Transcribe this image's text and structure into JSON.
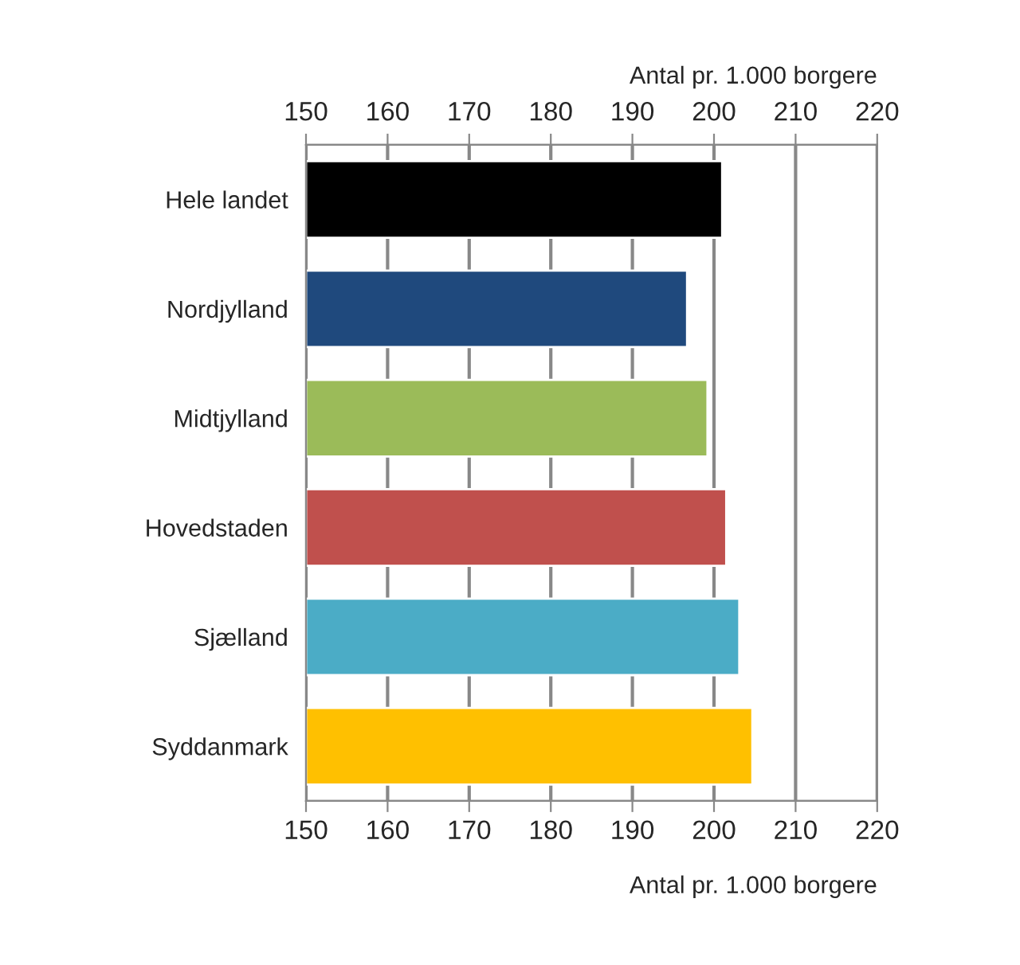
{
  "chart_data": {
    "type": "bar",
    "orientation": "horizontal",
    "categories": [
      "Hele landet",
      "Nordjylland",
      "Midtjylland",
      "Hovedstaden",
      "Sjælland",
      "Syddanmark"
    ],
    "values": [
      201.0,
      196.7,
      199.2,
      201.5,
      203.1,
      204.7
    ],
    "colors": [
      "#000000",
      "#1f497d",
      "#9bbb59",
      "#c0504d",
      "#4bacc6",
      "#ffc000"
    ],
    "xlim": [
      150,
      220
    ],
    "xticks": [
      150,
      160,
      170,
      180,
      190,
      200,
      210,
      220
    ],
    "x2lim": [
      150,
      220
    ],
    "x2ticks": [
      150,
      160,
      170,
      180,
      190,
      200,
      210,
      220
    ],
    "xlabel": "Antal pr. 1.000 borgere",
    "x2label": "Antal pr. 1.000 borgere",
    "grid": "x"
  }
}
